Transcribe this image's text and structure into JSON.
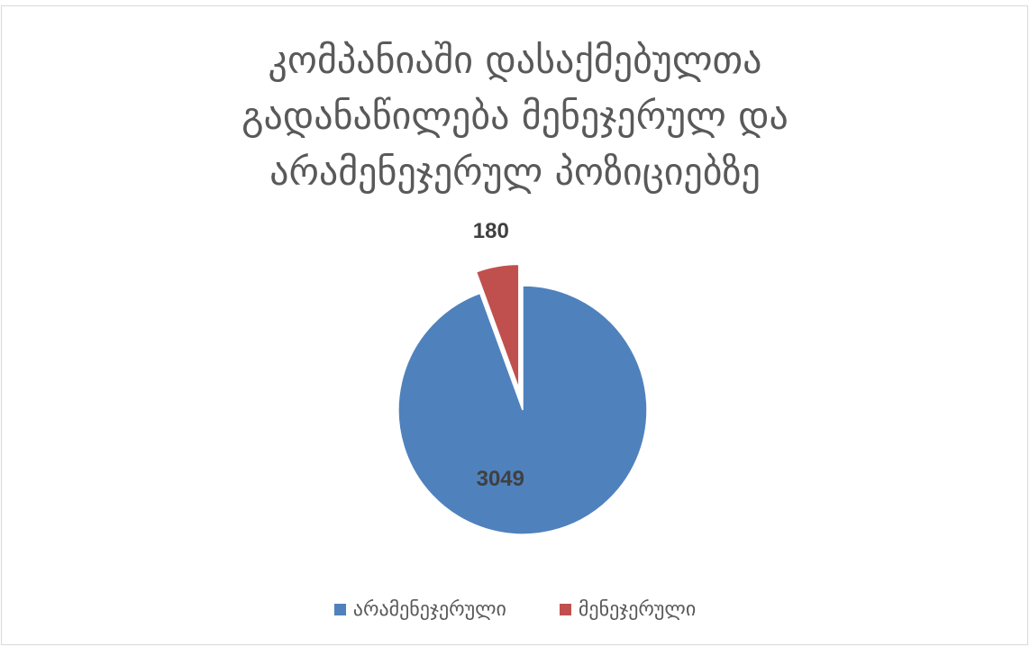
{
  "chart_data": {
    "type": "pie",
    "title_lines": [
      "კომპანიაში დასაქმებულთა",
      "გადანაწილება მენეჯერულ და",
      "არამენეჯერულ პოზიციებზე"
    ],
    "categories": [
      "არამენეჯერული",
      "მენეჯერული"
    ],
    "values": [
      3049,
      180
    ],
    "colors": [
      "#4f81bd",
      "#c0504d"
    ],
    "exploded": [
      false,
      true
    ],
    "data_labels": [
      "3049",
      "180"
    ],
    "legend_position": "bottom"
  }
}
